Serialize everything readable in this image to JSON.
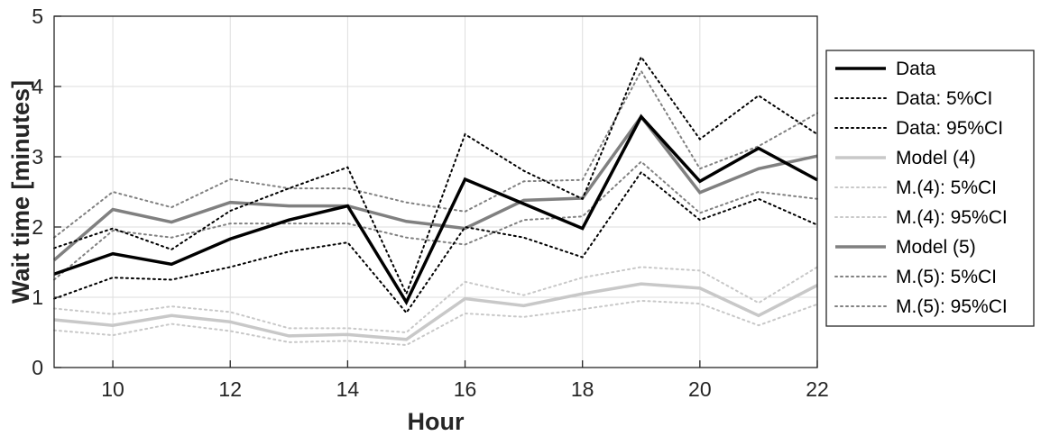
{
  "chart_data": {
    "type": "line",
    "xlabel": "Hour",
    "ylabel": "Wait time [minutes]",
    "xlim": [
      9,
      22
    ],
    "ylim": [
      0,
      5
    ],
    "xticks": [
      10,
      12,
      14,
      16,
      18,
      20,
      22
    ],
    "yticks": [
      0,
      1,
      2,
      3,
      4,
      5
    ],
    "grid": true,
    "legend_position": "right-outside",
    "x": [
      9,
      10,
      11,
      12,
      13,
      14,
      15,
      16,
      17,
      18,
      19,
      20,
      21,
      22
    ],
    "series": [
      {
        "name": "Data",
        "color": "#000000",
        "style": "solid",
        "width": 3.5,
        "values": [
          1.33,
          1.62,
          1.47,
          1.83,
          2.1,
          2.3,
          0.93,
          2.68,
          2.33,
          1.98,
          3.57,
          2.65,
          3.12,
          2.67
        ]
      },
      {
        "name": "Data: 5%CI",
        "color": "#000000",
        "style": "dotted",
        "width": 2,
        "values": [
          0.98,
          1.28,
          1.25,
          1.43,
          1.65,
          1.78,
          0.78,
          2.0,
          1.85,
          1.57,
          2.78,
          2.1,
          2.4,
          2.03
        ]
      },
      {
        "name": "Data: 95%CI",
        "color": "#000000",
        "style": "dotted",
        "width": 2,
        "values": [
          1.7,
          1.98,
          1.68,
          2.23,
          2.55,
          2.85,
          1.05,
          3.32,
          2.8,
          2.4,
          4.42,
          3.25,
          3.87,
          3.32
        ]
      },
      {
        "name": "Model (4)",
        "color": "#c8c8c8",
        "style": "solid",
        "width": 3.5,
        "values": [
          0.68,
          0.6,
          0.74,
          0.65,
          0.45,
          0.47,
          0.4,
          0.98,
          0.88,
          1.05,
          1.19,
          1.13,
          0.74,
          1.17
        ]
      },
      {
        "name": "M.(4): 5%CI",
        "color": "#c8c8c8",
        "style": "dotted",
        "width": 2,
        "values": [
          0.53,
          0.46,
          0.62,
          0.52,
          0.36,
          0.38,
          0.32,
          0.77,
          0.72,
          0.83,
          0.95,
          0.91,
          0.6,
          0.9
        ]
      },
      {
        "name": "M.(4): 95%CI",
        "color": "#c8c8c8",
        "style": "dotted",
        "width": 2,
        "values": [
          0.84,
          0.76,
          0.87,
          0.79,
          0.56,
          0.56,
          0.5,
          1.22,
          1.03,
          1.28,
          1.43,
          1.38,
          0.92,
          1.43
        ]
      },
      {
        "name": "Model (5)",
        "color": "#808080",
        "style": "solid",
        "width": 3.5,
        "values": [
          1.53,
          2.25,
          2.07,
          2.35,
          2.3,
          2.3,
          2.08,
          1.98,
          2.38,
          2.41,
          3.57,
          2.49,
          2.83,
          3.01
        ]
      },
      {
        "name": "M.(5): 5%CI",
        "color": "#808080",
        "style": "dotted",
        "width": 2,
        "values": [
          1.25,
          1.95,
          1.85,
          2.05,
          2.05,
          2.05,
          1.85,
          1.75,
          2.1,
          2.15,
          2.93,
          2.2,
          2.5,
          2.4
        ]
      },
      {
        "name": "M.(5): 95%CI",
        "color": "#808080",
        "style": "dotted",
        "width": 2,
        "values": [
          1.85,
          2.5,
          2.28,
          2.68,
          2.55,
          2.55,
          2.35,
          2.22,
          2.65,
          2.67,
          4.22,
          2.83,
          3.15,
          3.62
        ]
      }
    ]
  }
}
